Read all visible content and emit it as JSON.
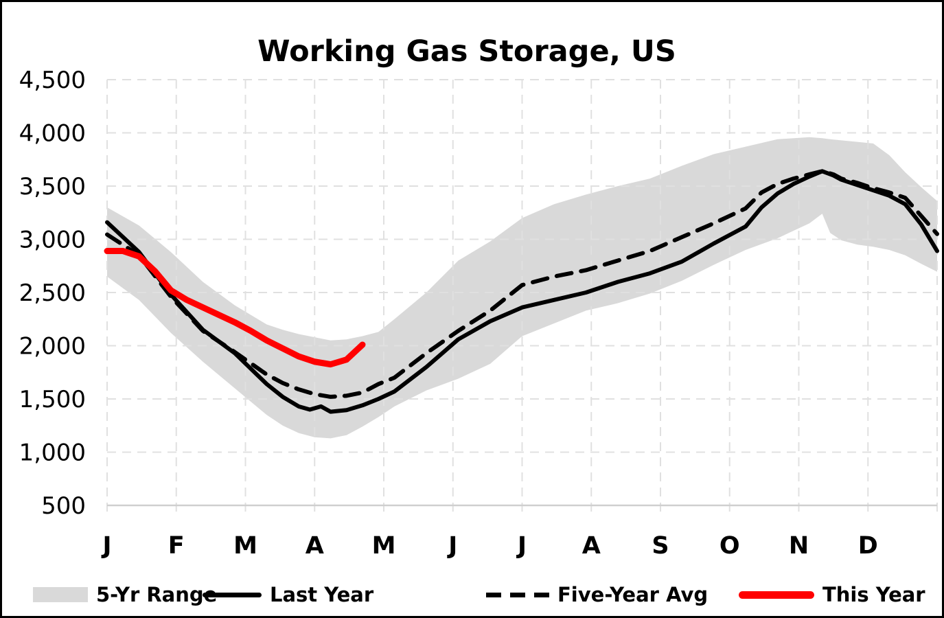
{
  "chart_data": {
    "type": "line",
    "title": "Working Gas Storage, US",
    "xlabel": "",
    "ylabel": "",
    "ylim": [
      500,
      4500
    ],
    "x_weeks_per_year": 52,
    "grid": true,
    "legend_position": "bottom",
    "y_ticks": [
      {
        "value": 4500,
        "label": "4,500"
      },
      {
        "value": 4000,
        "label": "4,000"
      },
      {
        "value": 3500,
        "label": "3,500"
      },
      {
        "value": 3000,
        "label": "3,000"
      },
      {
        "value": 2500,
        "label": "2,500"
      },
      {
        "value": 2000,
        "label": "2,000"
      },
      {
        "value": 1500,
        "label": "1,500"
      },
      {
        "value": 1000,
        "label": "1,000"
      },
      {
        "value": 500,
        "label": "500"
      }
    ],
    "x_months": [
      "J",
      "F",
      "M",
      "A",
      "M",
      "J",
      "J",
      "A",
      "S",
      "O",
      "N",
      "D"
    ],
    "series": [
      {
        "name": "5-Yr Range",
        "type": "band",
        "color": "#d9d9d9",
        "weeks": [
          0,
          2,
          4,
          6,
          8,
          10,
          11,
          12,
          13,
          14,
          15,
          16,
          17,
          18,
          20,
          22,
          24,
          26,
          28,
          30,
          32,
          34,
          36,
          38,
          40,
          42,
          44,
          44.8,
          45.3,
          46,
          47,
          48,
          49,
          50,
          51,
          52
        ],
        "top": [
          3300,
          3130,
          2880,
          2600,
          2380,
          2200,
          2150,
          2110,
          2080,
          2050,
          2060,
          2090,
          2130,
          2250,
          2500,
          2800,
          2980,
          3200,
          3330,
          3420,
          3500,
          3570,
          3690,
          3800,
          3870,
          3940,
          3960,
          3950,
          3940,
          3930,
          3915,
          3900,
          3790,
          3630,
          3490,
          3360
        ],
        "bottom": [
          2650,
          2430,
          2120,
          1850,
          1600,
          1350,
          1250,
          1180,
          1140,
          1130,
          1160,
          1240,
          1330,
          1430,
          1580,
          1690,
          1830,
          2090,
          2210,
          2330,
          2400,
          2490,
          2610,
          2760,
          2900,
          3010,
          3150,
          3240,
          3060,
          2990,
          2950,
          2930,
          2900,
          2850,
          2770,
          2695
        ]
      },
      {
        "name": "Last Year",
        "type": "line",
        "style": "solid",
        "color": "#000000",
        "width": 6,
        "weeks": [
          0,
          2,
          4,
          6,
          8,
          10,
          11,
          12,
          12.7,
          13.4,
          14,
          15,
          16,
          17,
          18,
          20,
          22,
          24,
          26,
          28,
          30,
          32,
          34,
          36,
          38,
          40,
          41,
          42,
          43,
          44,
          44.8,
          45.5,
          46,
          47,
          48,
          49,
          50,
          51,
          52
        ],
        "values": [
          3160,
          2880,
          2480,
          2150,
          1930,
          1640,
          1520,
          1430,
          1400,
          1430,
          1380,
          1395,
          1440,
          1500,
          1570,
          1800,
          2060,
          2230,
          2360,
          2430,
          2500,
          2600,
          2680,
          2790,
          2960,
          3120,
          3300,
          3430,
          3520,
          3590,
          3640,
          3600,
          3560,
          3510,
          3460,
          3410,
          3330,
          3140,
          2890
        ]
      },
      {
        "name": "Five-Year Avg",
        "type": "line",
        "style": "dashed",
        "color": "#000000",
        "width": 6,
        "weeks": [
          0,
          2,
          4,
          6,
          8,
          10,
          11,
          12,
          13,
          14,
          15,
          16,
          17,
          18,
          20,
          22,
          24,
          26,
          28,
          30,
          32,
          34,
          36,
          38,
          40,
          41,
          42,
          43,
          44,
          44.8,
          45.5,
          46,
          47,
          48,
          49,
          50,
          51,
          52
        ],
        "values": [
          3045,
          2850,
          2460,
          2140,
          1940,
          1730,
          1650,
          1590,
          1545,
          1520,
          1530,
          1560,
          1640,
          1700,
          1930,
          2140,
          2330,
          2570,
          2650,
          2710,
          2800,
          2890,
          3020,
          3150,
          3290,
          3440,
          3520,
          3570,
          3610,
          3640,
          3610,
          3570,
          3530,
          3480,
          3440,
          3390,
          3220,
          3050
        ]
      },
      {
        "name": "This Year",
        "type": "line",
        "style": "solid",
        "color": "#ff0000",
        "width": 9,
        "weeks": [
          0,
          1,
          2,
          3,
          4,
          5,
          6,
          7,
          8,
          9,
          10,
          11,
          12,
          13,
          14,
          15,
          16
        ],
        "values": [
          2890,
          2890,
          2840,
          2700,
          2520,
          2430,
          2360,
          2290,
          2220,
          2140,
          2050,
          1975,
          1900,
          1850,
          1825,
          1870,
          2010
        ]
      }
    ],
    "legend": [
      {
        "label": "5-Yr Range",
        "swatch": "band"
      },
      {
        "label": "Last Year",
        "swatch": "solid-line"
      },
      {
        "label": "Five-Year Avg",
        "swatch": "dashed-line"
      },
      {
        "label": "This Year",
        "swatch": "red-line"
      }
    ]
  },
  "colors": {
    "background": "#ffffff",
    "frame_border": "#000000",
    "grid": "#e0e0e0",
    "axis_line": "#cfcfcf",
    "band": "#d9d9d9",
    "line_black": "#000000",
    "line_red": "#ff0000",
    "text": "#000000"
  }
}
